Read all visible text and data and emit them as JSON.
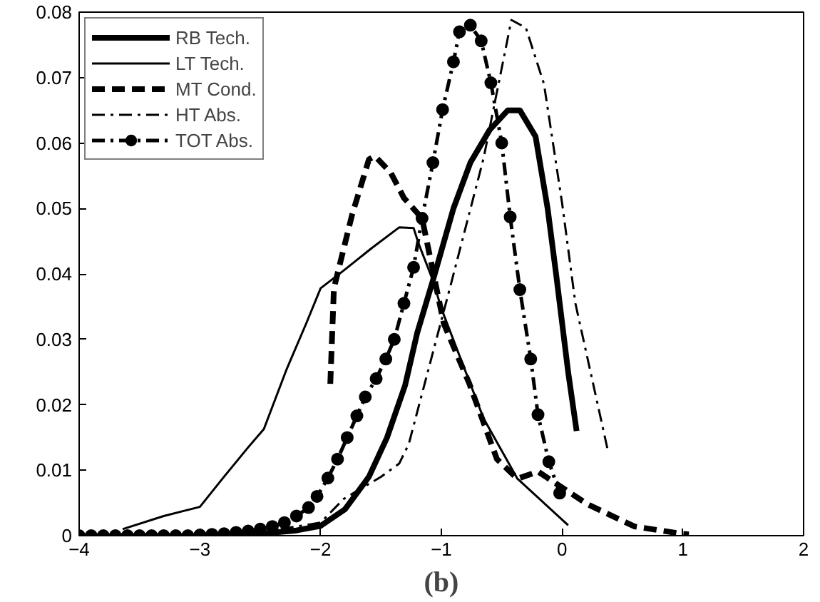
{
  "chart_data": {
    "type": "line",
    "xlabel": "(b)",
    "xlim": [
      -4,
      2
    ],
    "xticks": [
      -4,
      -3,
      -2,
      -1,
      0,
      1,
      2
    ],
    "ylim": [
      0,
      0.08
    ],
    "yticks": [
      0,
      0.01,
      0.02,
      0.03,
      0.04,
      0.05,
      0.06,
      0.07,
      0.08
    ],
    "grid": false,
    "legend": "top left",
    "series": [
      {
        "name": "RB Tech.",
        "color": "#000000",
        "line_style": "solid",
        "marker": "none",
        "x": [
          -3,
          -2.5,
          -2.2,
          -2,
          -1.8,
          -1.6,
          -1.45,
          -1.3,
          -1.2,
          -1.07,
          -0.9,
          -0.76,
          -0.6,
          -0.45,
          -0.35,
          -0.22,
          -0.12,
          -0.05,
          0.05,
          0.12
        ],
        "values": [
          0,
          0.0003,
          0.0008,
          0.0015,
          0.004,
          0.009,
          0.015,
          0.023,
          0.031,
          0.039,
          0.05,
          0.057,
          0.062,
          0.065,
          0.065,
          0.061,
          0.05,
          0.04,
          0.025,
          0.016
        ]
      },
      {
        "name": "LT Tech.",
        "color": "#000000",
        "line_style": "solid",
        "marker": "none",
        "x": [
          -3.64,
          -3.3,
          -3.0,
          -2.8,
          -2.6,
          -2.47,
          -2.28,
          -2.12,
          -2.0,
          -1.81,
          -1.58,
          -1.35,
          -1.23,
          -1.19,
          -1.07,
          -1.0,
          -0.65,
          -0.37,
          0.05
        ],
        "values": [
          0.001,
          0.003,
          0.0044,
          0.009,
          0.0135,
          0.0163,
          0.0255,
          0.0324,
          0.0378,
          0.0405,
          0.0439,
          0.0471,
          0.047,
          0.0447,
          0.039,
          0.0347,
          0.0179,
          0.0087,
          0.0016
        ]
      },
      {
        "name": "MT Cond.",
        "color": "#000000",
        "line_style": "dashed",
        "marker": "none",
        "x": [
          -1.92,
          -1.89,
          -1.74,
          -1.6,
          -1.55,
          -1.42,
          -1.31,
          -1.16,
          -0.98,
          -0.77,
          -0.54,
          -0.37,
          -0.2,
          0.21,
          0.6,
          0.99,
          1.05
        ],
        "values": [
          0.0232,
          0.0378,
          0.049,
          0.0575,
          0.058,
          0.0555,
          0.0516,
          0.0485,
          0.0324,
          0.0233,
          0.0117,
          0.0087,
          0.0098,
          0.0048,
          0.0014,
          0.0003,
          0.0002
        ]
      },
      {
        "name": "HT Abs.",
        "color": "#000000",
        "line_style": "dashdot",
        "marker": "none",
        "x": [
          -3,
          -2.5,
          -2,
          -1.81,
          -1.5,
          -1.35,
          -1.27,
          -0.92,
          -0.65,
          -0.42,
          -0.3,
          -0.15,
          0.0,
          0.11,
          0.38
        ],
        "values": [
          0,
          0.0005,
          0.002,
          0.0056,
          0.009,
          0.011,
          0.014,
          0.0385,
          0.0577,
          0.0788,
          0.0776,
          0.069,
          0.0508,
          0.0355,
          0.0129
        ]
      },
      {
        "name": "TOT Abs.",
        "color": "#000000",
        "line_style": "dashdot",
        "marker": "circle",
        "x": [
          -4,
          -3.9,
          -3.8,
          -3.7,
          -3.6,
          -3.5,
          -3.4,
          -3.3,
          -3.2,
          -3.1,
          -3.0,
          -2.9,
          -2.8,
          -2.7,
          -2.6,
          -2.5,
          -2.4,
          -2.3,
          -2.2,
          -2.1,
          -2.03,
          -1.94,
          -1.86,
          -1.78,
          -1.7,
          -1.63,
          -1.54,
          -1.46,
          -1.39,
          -1.31,
          -1.23,
          -1.16,
          -1.07,
          -0.99,
          -0.9,
          -0.85,
          -0.76,
          -0.67,
          -0.59,
          -0.5,
          -0.43,
          -0.35,
          -0.26,
          -0.2,
          -0.11,
          -0.02
        ],
        "values": [
          0,
          0,
          0,
          0,
          0,
          0,
          0,
          0,
          0,
          0,
          0.0001,
          0.0002,
          0.0003,
          0.0005,
          0.0007,
          0.001,
          0.0014,
          0.002,
          0.003,
          0.0043,
          0.006,
          0.0088,
          0.0117,
          0.015,
          0.0183,
          0.0212,
          0.024,
          0.027,
          0.03,
          0.0355,
          0.041,
          0.0485,
          0.057,
          0.0651,
          0.0724,
          0.077,
          0.078,
          0.0756,
          0.0692,
          0.06,
          0.0487,
          0.0376,
          0.027,
          0.0185,
          0.0113,
          0.0065
        ]
      }
    ]
  }
}
